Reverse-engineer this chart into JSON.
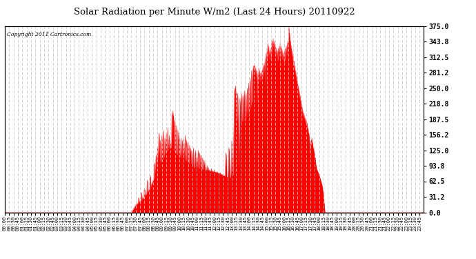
{
  "title": "Solar Radiation per Minute W/m2 (Last 24 Hours) 20110922",
  "copyright_text": "Copyright 2011 Cartronics.com",
  "background_color": "#ffffff",
  "plot_bg_color": "#ffffff",
  "fill_color": "#ff0000",
  "line_color": "#ff0000",
  "grid_color": "#c8c8c8",
  "ylim": [
    0,
    375
  ],
  "yticks": [
    0.0,
    31.2,
    62.5,
    93.8,
    125.0,
    156.2,
    187.5,
    218.8,
    250.0,
    281.2,
    312.5,
    343.8,
    375.0
  ],
  "total_minutes": 1440,
  "sunrise_minute": 435,
  "sunset_minute": 1095,
  "figsize": [
    6.9,
    3.75
  ],
  "dpi": 100
}
